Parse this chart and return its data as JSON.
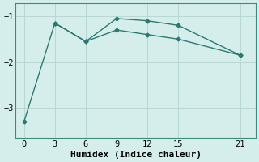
{
  "line1_x": [
    0,
    3,
    6,
    9,
    12,
    15,
    21
  ],
  "line1_y": [
    -3.3,
    -1.15,
    -1.55,
    -1.05,
    -1.1,
    -1.2,
    -1.85
  ],
  "line2_x": [
    3,
    6,
    9,
    12,
    15,
    21
  ],
  "line2_y": [
    -1.15,
    -1.55,
    -1.3,
    -1.4,
    -1.5,
    -1.85
  ],
  "line_color": "#2a7a70",
  "bg_color": "#d6eeeb",
  "grid_color": "#b8d8d4",
  "spine_color": "#3a8a80",
  "xlabel": "Humidex (Indice chaleur)",
  "xticks": [
    0,
    3,
    6,
    9,
    12,
    15,
    21
  ],
  "yticks": [
    -3,
    -2,
    -1
  ],
  "xlim": [
    -0.8,
    22.5
  ],
  "ylim": [
    -3.65,
    -0.72
  ],
  "marker": "D",
  "markersize": 2.5,
  "linewidth": 1.0,
  "font_family": "monospace",
  "xlabel_fontsize": 8,
  "tick_fontsize": 7.5
}
